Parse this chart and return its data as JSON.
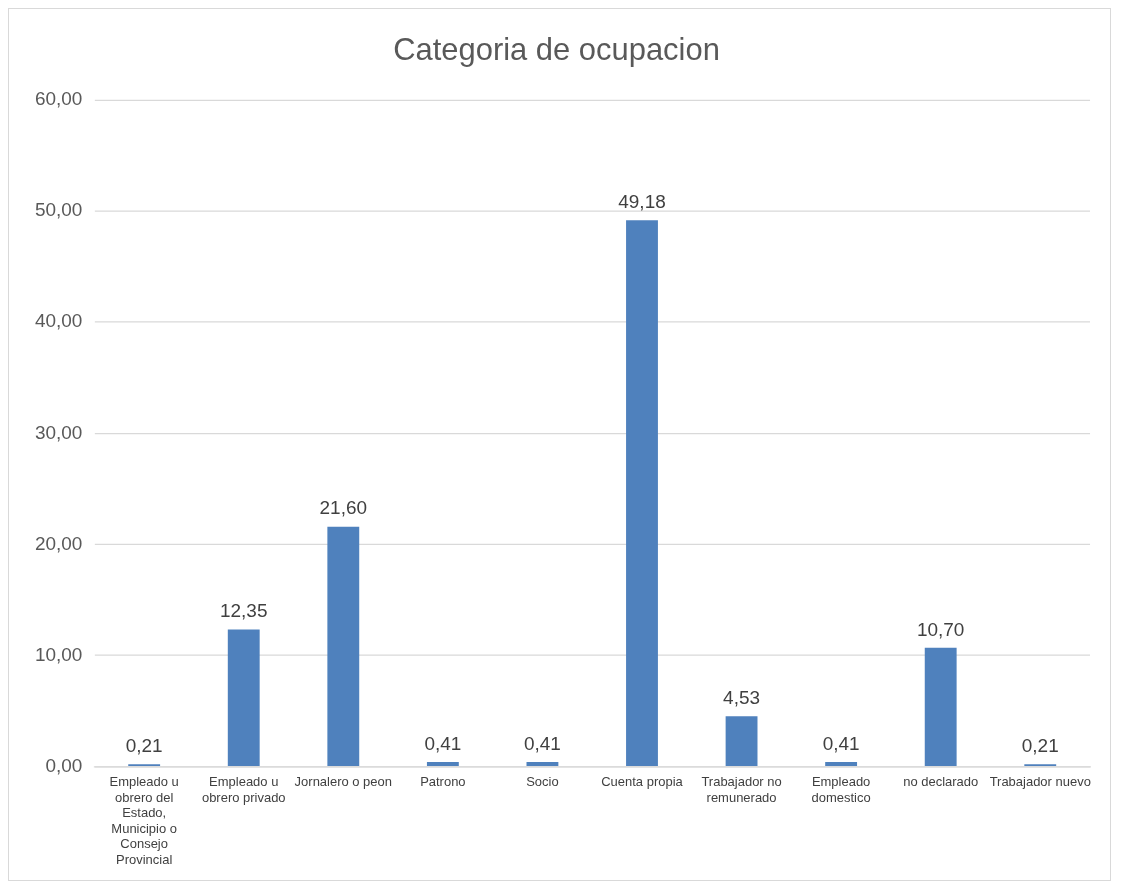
{
  "chart_data": {
    "type": "bar",
    "title": "Categoria de ocupacion",
    "categories": [
      "Empleado u obrero del Estado, Municipio o Consejo Provincial",
      "Empleado u obrero privado",
      "Jornalero o peon",
      "Patrono",
      "Socio",
      "Cuenta propia",
      "Trabajador no remunerado",
      "Empleado domestico",
      "no declarado",
      "Trabajador nuevo"
    ],
    "values": [
      0.21,
      12.35,
      21.6,
      0.41,
      0.41,
      49.18,
      4.53,
      0.41,
      10.7,
      0.21
    ],
    "value_labels": [
      "0,21",
      "12,35",
      "21,60",
      "0,41",
      "0,41",
      "49,18",
      "4,53",
      "0,41",
      "10,70",
      "0,21"
    ],
    "color": "#4f81bd",
    "ylim": [
      0,
      60
    ],
    "yticks": [
      {
        "value": 0,
        "label": "0,00"
      },
      {
        "value": 10,
        "label": "10,00"
      },
      {
        "value": 20,
        "label": "20,00"
      },
      {
        "value": 30,
        "label": "30,00"
      },
      {
        "value": 40,
        "label": "40,00"
      },
      {
        "value": 50,
        "label": "50,00"
      },
      {
        "value": 60,
        "label": "60,00"
      }
    ],
    "grid": "y",
    "legend": false
  }
}
